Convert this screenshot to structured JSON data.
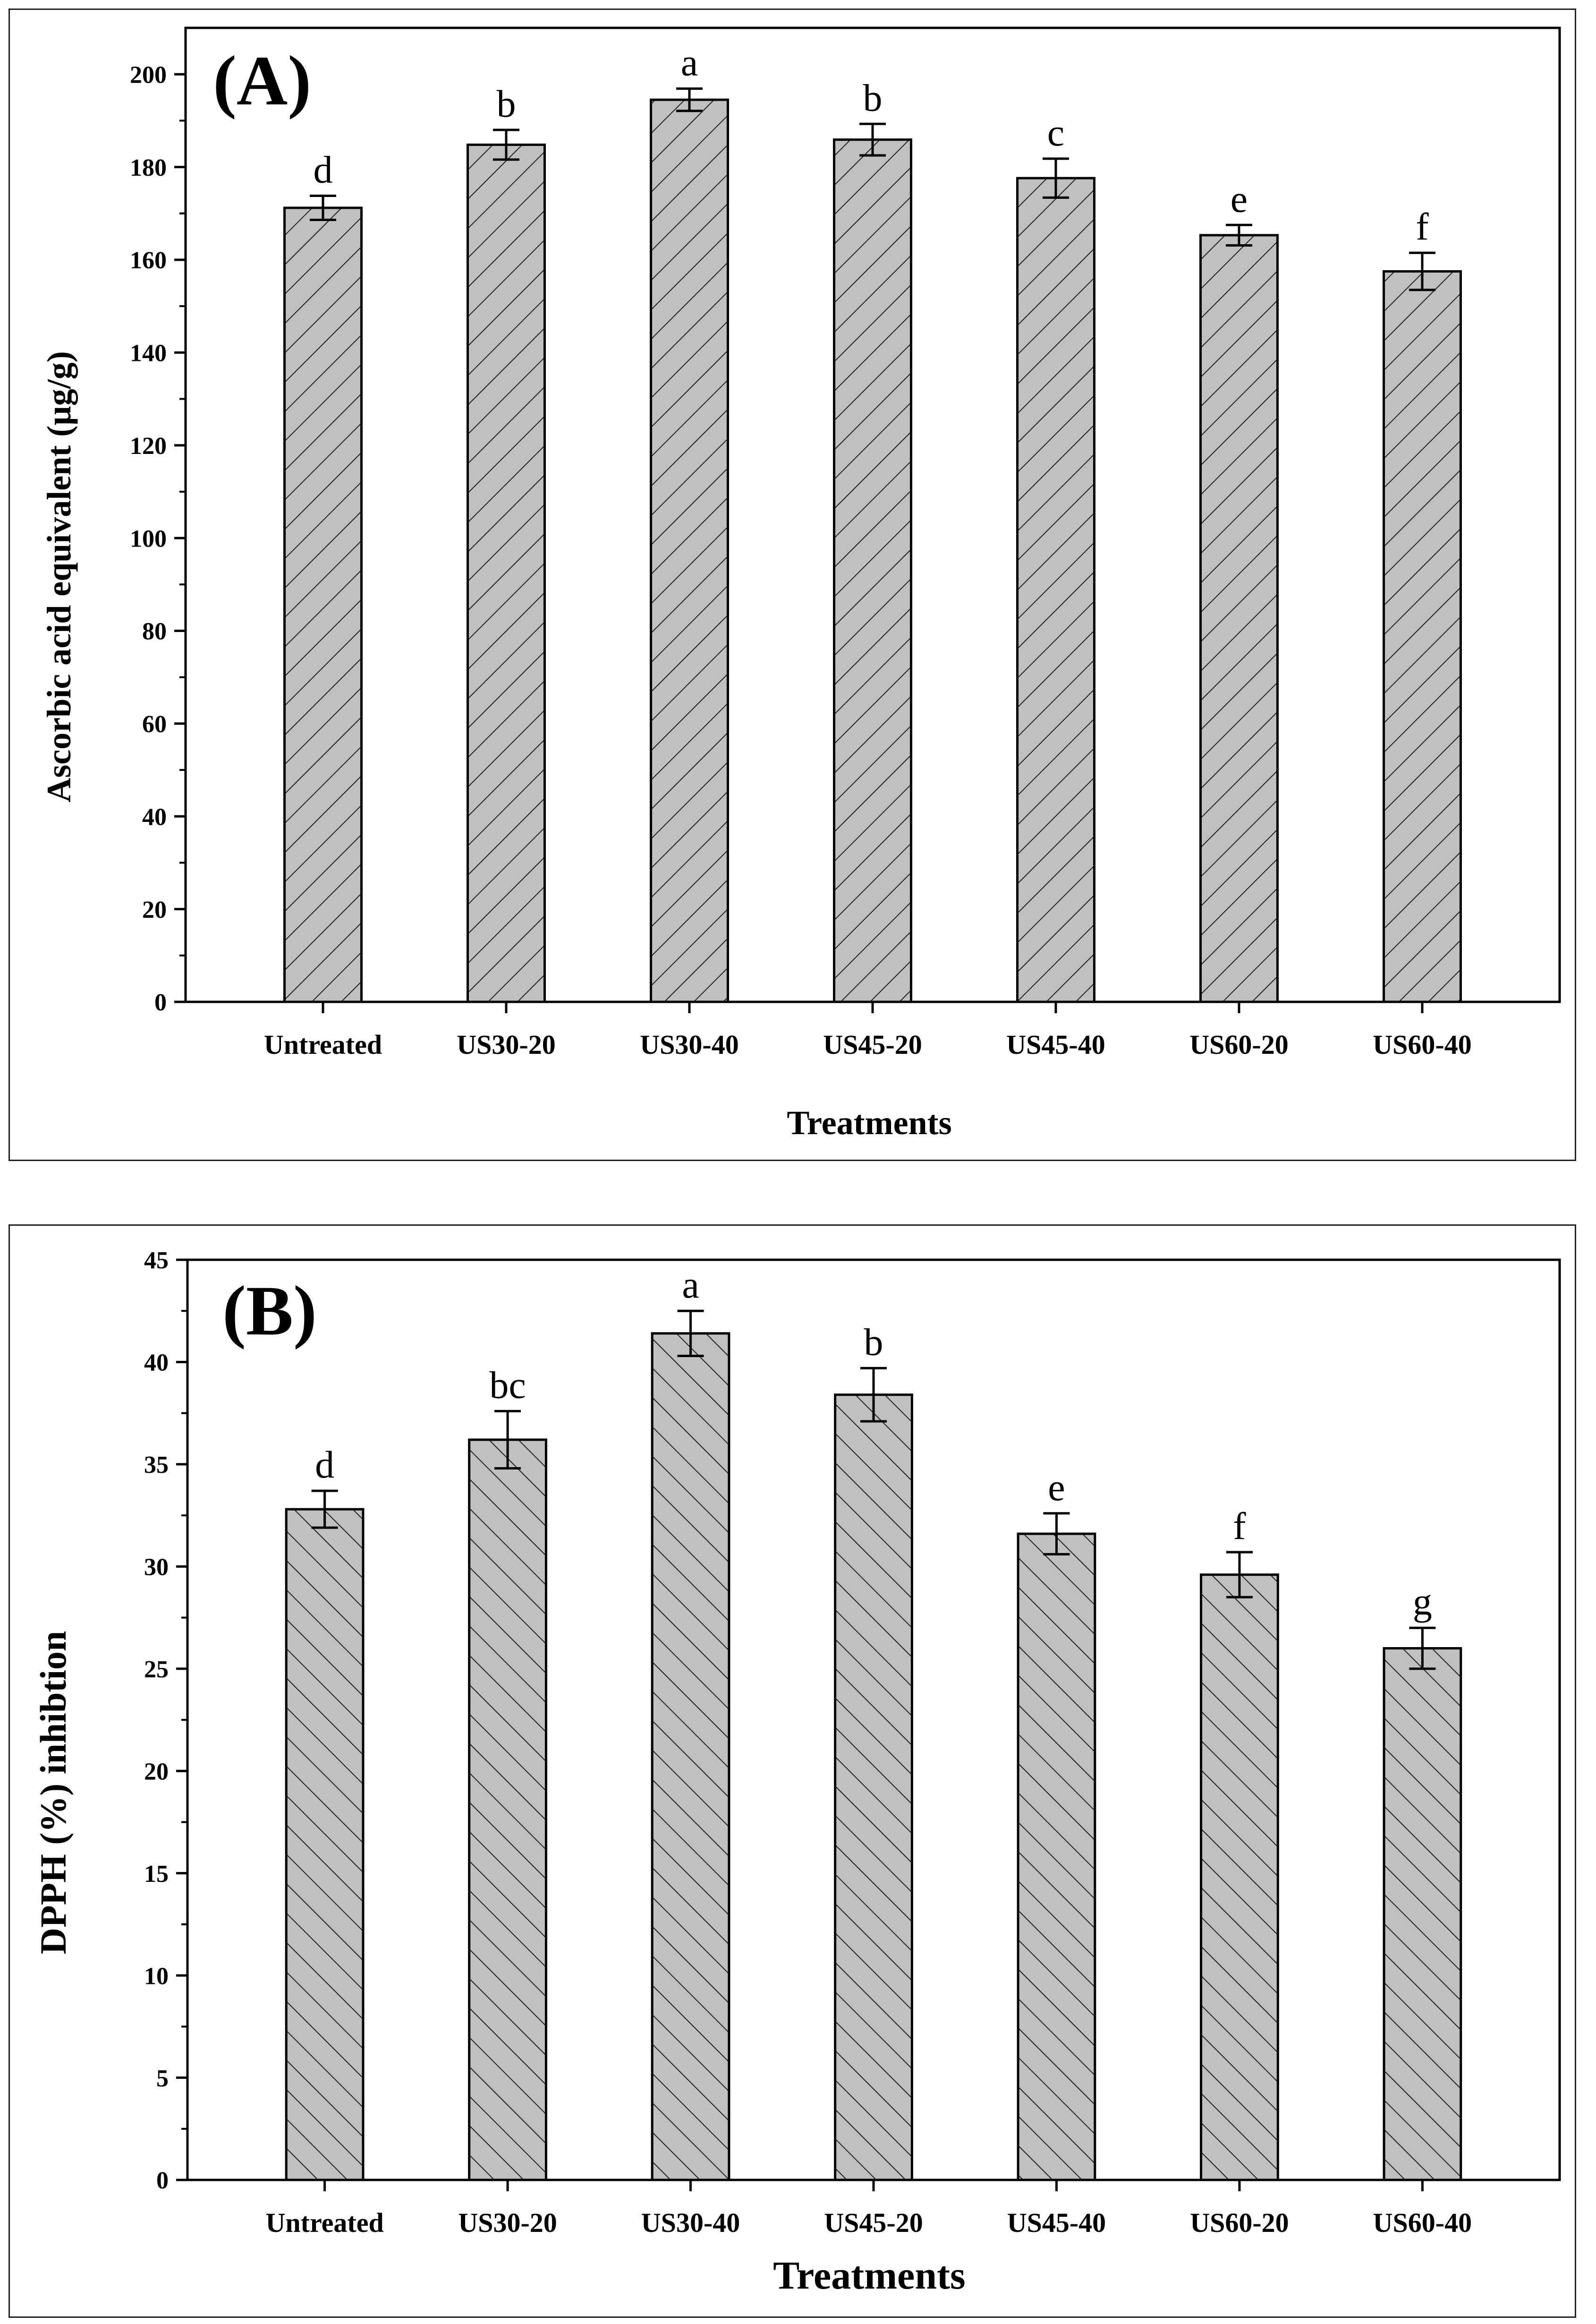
{
  "chart_data": [
    {
      "type": "bar",
      "panel_label": "(A)",
      "title": "",
      "xlabel": "Treatments",
      "ylabel": "Ascorbic acid equivalent (µg/g)",
      "categories": [
        "Untreated",
        "US30-20",
        "US30-40",
        "US45-20",
        "US45-40",
        "US60-20",
        "US60-40"
      ],
      "values": [
        171.2,
        184.8,
        194.5,
        185.9,
        177.6,
        165.3,
        157.5
      ],
      "errors": [
        2.6,
        3.2,
        2.4,
        3.4,
        4.2,
        2.2,
        4.0
      ],
      "significance_letters": [
        "d",
        "b",
        "a",
        "b",
        "c",
        "e",
        "f"
      ],
      "ylim": [
        0,
        210
      ],
      "yticks": [
        0,
        20,
        40,
        60,
        80,
        100,
        120,
        140,
        160,
        180,
        200
      ],
      "bar_color": "#c0c0c0",
      "hatch": "forward-diagonal",
      "grid": false
    },
    {
      "type": "bar",
      "panel_label": "(B)",
      "title": "",
      "xlabel": "Treatments",
      "ylabel": "DPPH (%) inhibtion",
      "categories": [
        "Untreated",
        "US30-20",
        "US30-40",
        "US45-20",
        "US45-40",
        "US60-20",
        "US60-40"
      ],
      "values": [
        32.8,
        36.2,
        41.4,
        38.4,
        31.6,
        29.6,
        26.0
      ],
      "errors": [
        0.9,
        1.4,
        1.1,
        1.3,
        1.0,
        1.1,
        1.0
      ],
      "significance_letters": [
        "d",
        "bc",
        "a",
        "b",
        "e",
        "f",
        "g"
      ],
      "ylim": [
        0,
        45
      ],
      "yticks": [
        0,
        5,
        10,
        15,
        20,
        25,
        30,
        35,
        40,
        45
      ],
      "bar_color": "#c0c0c0",
      "hatch": "back-diagonal",
      "grid": false
    }
  ]
}
